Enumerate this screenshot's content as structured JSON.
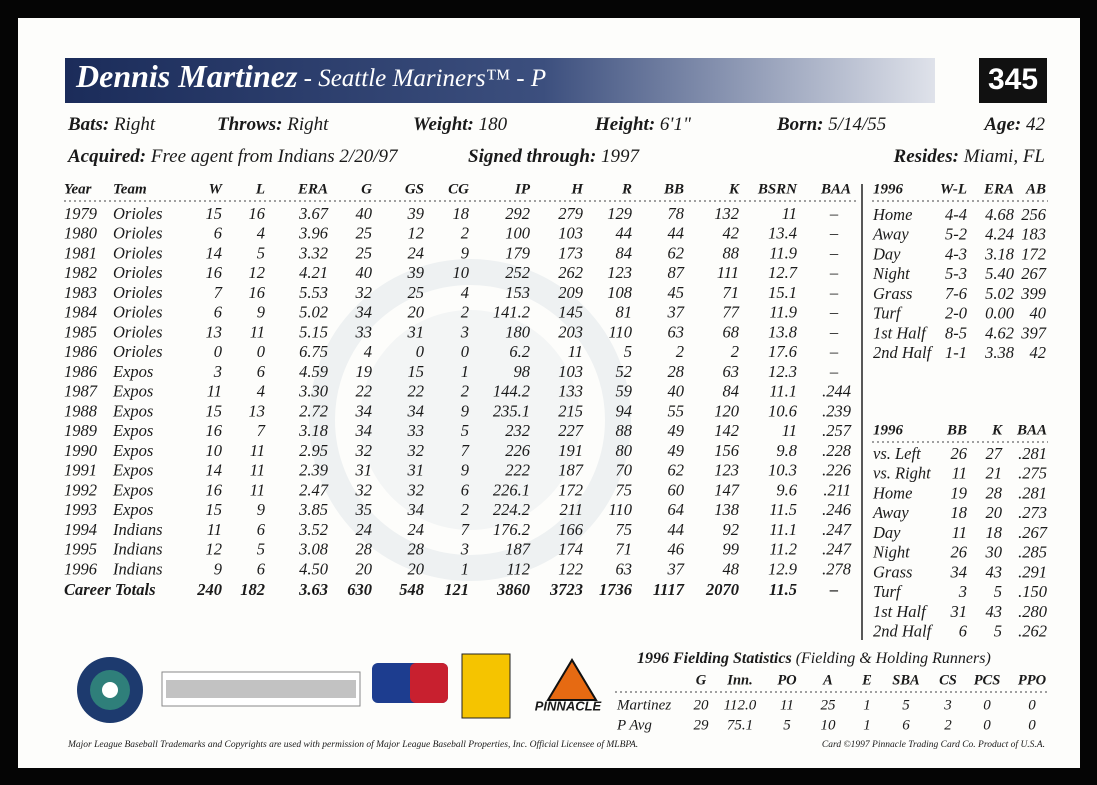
{
  "header": {
    "name": "Dennis Martinez",
    "team_position": " - Seattle Mariners™ - P",
    "card_number": "345"
  },
  "bio": [
    {
      "label": "Bats:",
      "value": " Right"
    },
    {
      "label": "Throws:",
      "value": " Right"
    },
    {
      "label": "Weight:",
      "value": " 180"
    },
    {
      "label": "Height:",
      "value": " 6'1\""
    },
    {
      "label": "Born:",
      "value": " 5/14/55"
    },
    {
      "label": "Age:",
      "value": " 42"
    },
    {
      "label": "Acquired:",
      "value": " Free agent from Indians 2/20/97"
    },
    {
      "label": "Signed through:",
      "value": " 1997"
    },
    {
      "label": "Resides:",
      "value": " Miami, FL"
    }
  ],
  "career_table": {
    "columns": [
      "Year",
      "Team",
      "W",
      "L",
      "ERA",
      "G",
      "GS",
      "CG",
      "IP",
      "H",
      "R",
      "BB",
      "K",
      "BSRN",
      "BAA"
    ],
    "rows": [
      [
        "1979",
        "Orioles",
        "15",
        "16",
        "3.67",
        "40",
        "39",
        "18",
        "292",
        "279",
        "129",
        "78",
        "132",
        "11",
        "–"
      ],
      [
        "1980",
        "Orioles",
        "6",
        "4",
        "3.96",
        "25",
        "12",
        "2",
        "100",
        "103",
        "44",
        "44",
        "42",
        "13.4",
        "–"
      ],
      [
        "1981",
        "Orioles",
        "14",
        "5",
        "3.32",
        "25",
        "24",
        "9",
        "179",
        "173",
        "84",
        "62",
        "88",
        "11.9",
        "–"
      ],
      [
        "1982",
        "Orioles",
        "16",
        "12",
        "4.21",
        "40",
        "39",
        "10",
        "252",
        "262",
        "123",
        "87",
        "111",
        "12.7",
        "–"
      ],
      [
        "1983",
        "Orioles",
        "7",
        "16",
        "5.53",
        "32",
        "25",
        "4",
        "153",
        "209",
        "108",
        "45",
        "71",
        "15.1",
        "–"
      ],
      [
        "1984",
        "Orioles",
        "6",
        "9",
        "5.02",
        "34",
        "20",
        "2",
        "141.2",
        "145",
        "81",
        "37",
        "77",
        "11.9",
        "–"
      ],
      [
        "1985",
        "Orioles",
        "13",
        "11",
        "5.15",
        "33",
        "31",
        "3",
        "180",
        "203",
        "110",
        "63",
        "68",
        "13.8",
        "–"
      ],
      [
        "1986",
        "Orioles",
        "0",
        "0",
        "6.75",
        "4",
        "0",
        "0",
        "6.2",
        "11",
        "5",
        "2",
        "2",
        "17.6",
        "–"
      ],
      [
        "1986",
        "Expos",
        "3",
        "6",
        "4.59",
        "19",
        "15",
        "1",
        "98",
        "103",
        "52",
        "28",
        "63",
        "12.3",
        "–"
      ],
      [
        "1987",
        "Expos",
        "11",
        "4",
        "3.30",
        "22",
        "22",
        "2",
        "144.2",
        "133",
        "59",
        "40",
        "84",
        "11.1",
        ".244"
      ],
      [
        "1988",
        "Expos",
        "15",
        "13",
        "2.72",
        "34",
        "34",
        "9",
        "235.1",
        "215",
        "94",
        "55",
        "120",
        "10.6",
        ".239"
      ],
      [
        "1989",
        "Expos",
        "16",
        "7",
        "3.18",
        "34",
        "33",
        "5",
        "232",
        "227",
        "88",
        "49",
        "142",
        "11",
        ".257"
      ],
      [
        "1990",
        "Expos",
        "10",
        "11",
        "2.95",
        "32",
        "32",
        "7",
        "226",
        "191",
        "80",
        "49",
        "156",
        "9.8",
        ".228"
      ],
      [
        "1991",
        "Expos",
        "14",
        "11",
        "2.39",
        "31",
        "31",
        "9",
        "222",
        "187",
        "70",
        "62",
        "123",
        "10.3",
        ".226"
      ],
      [
        "1992",
        "Expos",
        "16",
        "11",
        "2.47",
        "32",
        "32",
        "6",
        "226.1",
        "172",
        "75",
        "60",
        "147",
        "9.6",
        ".211"
      ],
      [
        "1993",
        "Expos",
        "15",
        "9",
        "3.85",
        "35",
        "34",
        "2",
        "224.2",
        "211",
        "110",
        "64",
        "138",
        "11.5",
        ".246"
      ],
      [
        "1994",
        "Indians",
        "11",
        "6",
        "3.52",
        "24",
        "24",
        "7",
        "176.2",
        "166",
        "75",
        "44",
        "92",
        "11.1",
        ".247"
      ],
      [
        "1995",
        "Indians",
        "12",
        "5",
        "3.08",
        "28",
        "28",
        "3",
        "187",
        "174",
        "71",
        "46",
        "99",
        "11.2",
        ".247"
      ],
      [
        "1996",
        "Indians",
        "9",
        "6",
        "4.50",
        "20",
        "20",
        "1",
        "112",
        "122",
        "63",
        "37",
        "48",
        "12.9",
        ".278"
      ]
    ],
    "totals": [
      "Career Totals",
      "240",
      "182",
      "3.63",
      "630",
      "548",
      "121",
      "3860",
      "3723",
      "1736",
      "1117",
      "2070",
      "11.5",
      "–"
    ]
  },
  "splits_record": {
    "columns": [
      "1996",
      "W-L",
      "ERA",
      "AB"
    ],
    "rows": [
      [
        "Home",
        "4-4",
        "4.68",
        "256"
      ],
      [
        "Away",
        "5-2",
        "4.24",
        "183"
      ],
      [
        "Day",
        "4-3",
        "3.18",
        "172"
      ],
      [
        "Night",
        "5-3",
        "5.40",
        "267"
      ],
      [
        "Grass",
        "7-6",
        "5.02",
        "399"
      ],
      [
        "Turf",
        "2-0",
        "0.00",
        "40"
      ],
      [
        "1st Half",
        "8-5",
        "4.62",
        "397"
      ],
      [
        "2nd Half",
        "1-1",
        "3.38",
        "42"
      ]
    ]
  },
  "splits_batting": {
    "columns": [
      "1996",
      "BB",
      "K",
      "BAA"
    ],
    "rows": [
      [
        "vs. Left",
        "26",
        "27",
        ".281"
      ],
      [
        "vs. Right",
        "11",
        "21",
        ".275"
      ],
      [
        "Home",
        "19",
        "28",
        ".281"
      ],
      [
        "Away",
        "18",
        "20",
        ".273"
      ],
      [
        "Day",
        "11",
        "18",
        ".267"
      ],
      [
        "Night",
        "26",
        "30",
        ".285"
      ],
      [
        "Grass",
        "34",
        "43",
        ".291"
      ],
      [
        "Turf",
        "3",
        "5",
        ".150"
      ],
      [
        "1st Half",
        "31",
        "43",
        ".280"
      ],
      [
        "2nd Half",
        "6",
        "5",
        ".262"
      ]
    ]
  },
  "fielding": {
    "title": "1996 Fielding Statistics",
    "subtitle": " (Fielding & Holding Runners)",
    "columns": [
      "G",
      "Inn.",
      "PO",
      "A",
      "E",
      "SBA",
      "CS",
      "PCS",
      "PPO"
    ],
    "rows": [
      [
        "Martinez",
        "20",
        "112.0",
        "11",
        "25",
        "1",
        "5",
        "3",
        "0",
        "0"
      ],
      [
        "P Avg",
        "29",
        "75.1",
        "5",
        "10",
        "1",
        "6",
        "2",
        "0",
        "0"
      ]
    ]
  },
  "logos": {
    "pinnacle": "PINNACLE"
  },
  "footer": {
    "left": "Major League Baseball Trademarks and Copyrights are used with permission of Major League Baseball Properties, Inc. Official Licensee of MLBPA.",
    "right": "Card ©1997 Pinnacle Trading Card Co. Product of U.S.A."
  }
}
